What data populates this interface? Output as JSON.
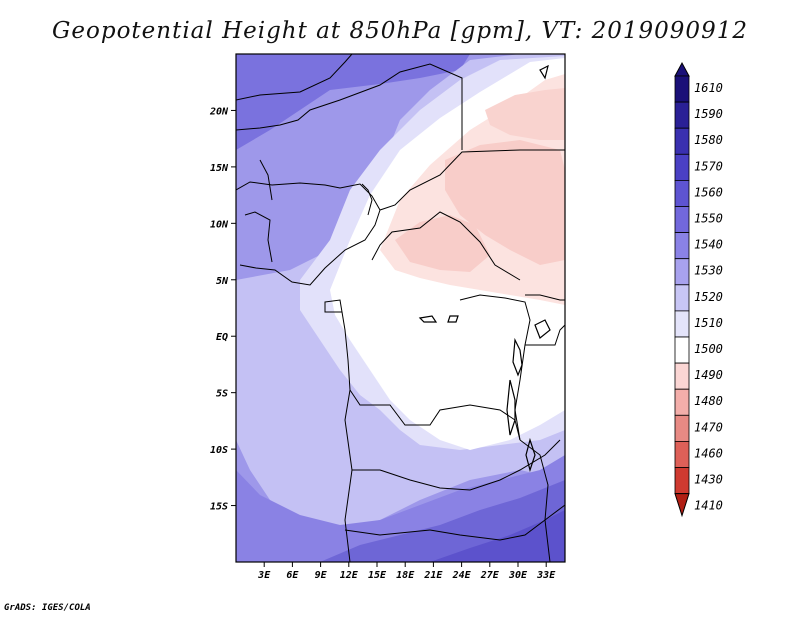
{
  "title": "Geopotential Height at 850hPa [gpm], VT: 2019090912",
  "footer": "GrADS: IGES/COLA",
  "map": {
    "region": "Central Africa",
    "lon_range": [
      0,
      35
    ],
    "lat_range": [
      -20,
      25
    ],
    "lon_tick_labels": [
      "3E",
      "6E",
      "9E",
      "12E",
      "15E",
      "18E",
      "21E",
      "24E",
      "27E",
      "30E",
      "33E"
    ],
    "lat_tick_labels": [
      "20N",
      "15N",
      "10N",
      "5N",
      "EQ",
      "5S",
      "10S",
      "15S"
    ]
  },
  "colorbar": {
    "levels": [
      "1610",
      "1590",
      "1580",
      "1570",
      "1560",
      "1550",
      "1540",
      "1530",
      "1520",
      "1510",
      "1500",
      "1490",
      "1480",
      "1470",
      "1460",
      "1430",
      "1410"
    ],
    "colors": [
      "#1a1078",
      "#2a2096",
      "#3a30b0",
      "#4a40c4",
      "#5e54d2",
      "#7268dc",
      "#8a82e6",
      "#a8a2ee",
      "#c8c6f5",
      "#e4e4fa",
      "#ffffff",
      "#fbd6d4",
      "#f3aeaa",
      "#e88a84",
      "#de6058",
      "#cf3a30",
      "#b11f14"
    ]
  },
  "colors": {
    "bg_blue": "#9c97ea",
    "deep_blue": "#6e66d8",
    "light_lavender": "#c8c6f5",
    "pale_lavender": "#e4e4fa",
    "white": "#ffffff",
    "pale_pink": "#fbe2df",
    "pink": "#f8cfcb"
  }
}
